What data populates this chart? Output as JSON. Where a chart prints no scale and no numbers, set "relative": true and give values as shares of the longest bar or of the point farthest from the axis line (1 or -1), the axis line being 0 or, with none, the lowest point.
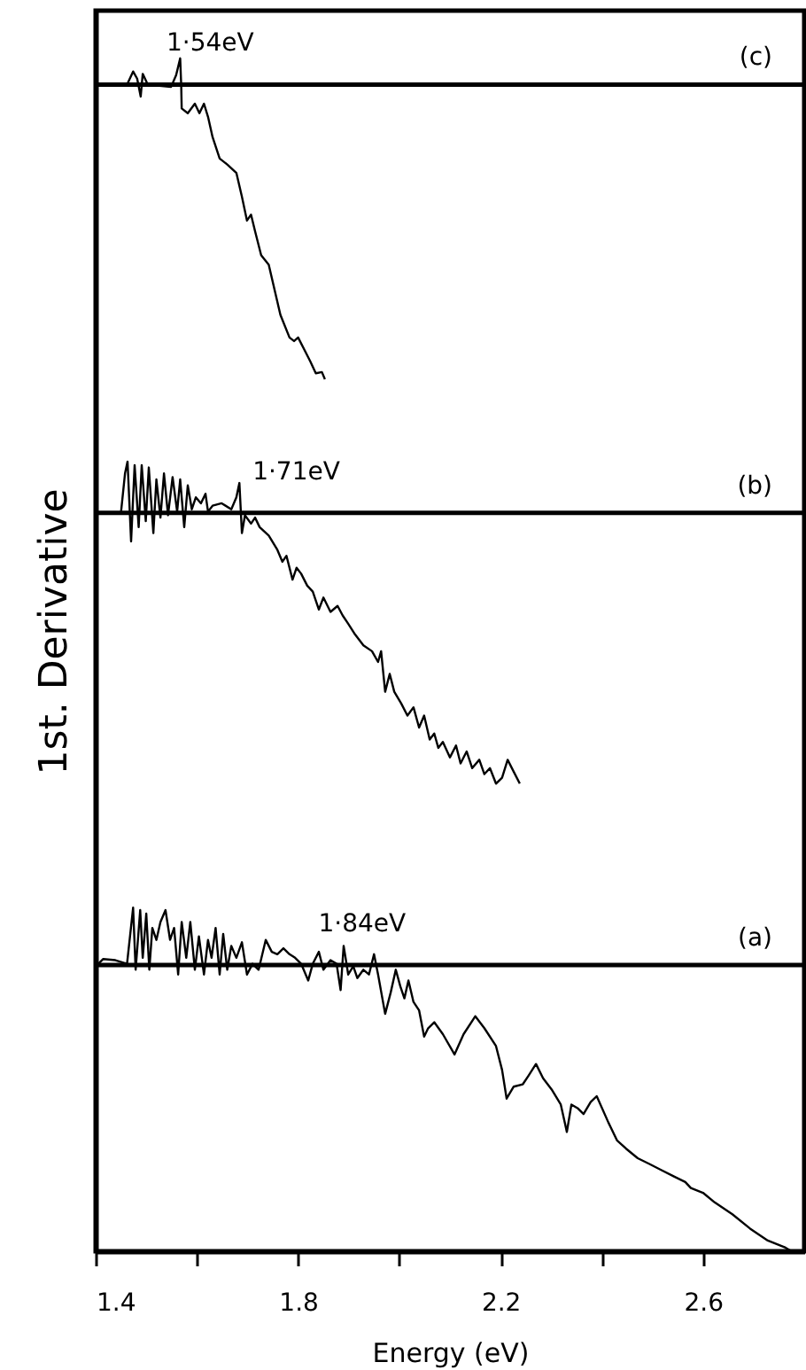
{
  "chart_data": {
    "type": "line",
    "xlabel": "Energy (eV)",
    "ylabel": "1st. Derivative",
    "relative": true,
    "grid": false,
    "line_style": "solid",
    "marker": "none",
    "xlim": [
      1.4,
      2.8
    ],
    "xticks": [
      1.4,
      {
        "value": 1.6,
        "label": null
      },
      1.8,
      {
        "value": 2.0,
        "label": null
      },
      2.2,
      {
        "value": 2.4,
        "label": null
      },
      2.6
    ],
    "series": [
      {
        "color": "#000000",
        "x": [
          1.4,
          1.462,
          1.474,
          1.482,
          1.489,
          1.493,
          1.503,
          1.549,
          1.559,
          1.567,
          1.569,
          1.57,
          1.582,
          1.596,
          1.605,
          1.614,
          1.622,
          1.631,
          1.645,
          1.66,
          1.678,
          1.689,
          1.699,
          1.707,
          1.715,
          1.727,
          1.742,
          1.754,
          1.765,
          1.783,
          1.792,
          1.8,
          1.812,
          1.824,
          1.835,
          1.847,
          1.853
        ],
        "values": [
          0.978,
          0.978,
          0.989,
          0.983,
          0.968,
          0.987,
          0.978,
          0.976,
          0.986,
          1.0,
          0.978,
          0.958,
          0.954,
          0.962,
          0.954,
          0.962,
          0.951,
          0.934,
          0.916,
          0.911,
          0.904,
          0.884,
          0.864,
          0.869,
          0.855,
          0.835,
          0.827,
          0.805,
          0.785,
          0.766,
          0.763,
          0.766,
          0.756,
          0.746,
          0.736,
          0.737,
          0.731
        ]
      },
      {
        "color": "#000000",
        "x": [
          1.4,
          1.45,
          1.458,
          1.463,
          1.47,
          1.477,
          1.485,
          1.491,
          1.499,
          1.505,
          1.514,
          1.52,
          1.528,
          1.535,
          1.543,
          1.552,
          1.561,
          1.567,
          1.575,
          1.582,
          1.59,
          1.598,
          1.608,
          1.617,
          1.622,
          1.631,
          1.649,
          1.668,
          1.678,
          1.684,
          1.689,
          1.695,
          1.707,
          1.715,
          1.724,
          1.742,
          1.759,
          1.769,
          1.777,
          1.789,
          1.797,
          1.806,
          1.818,
          1.829,
          1.841,
          1.85,
          1.864,
          1.878,
          1.888,
          1.899,
          1.911,
          1.929,
          1.946,
          1.958,
          1.964,
          1.972,
          1.981,
          1.99,
          2.004,
          2.016,
          2.028,
          2.039,
          2.049,
          2.06,
          2.069,
          2.077,
          2.086,
          2.1,
          2.112,
          2.121,
          2.133,
          2.144,
          2.158,
          2.168,
          2.179,
          2.191,
          2.203,
          2.214,
          2.226,
          2.238
        ],
        "values": [
          0.619,
          0.619,
          0.652,
          0.662,
          0.595,
          0.659,
          0.607,
          0.659,
          0.612,
          0.657,
          0.602,
          0.647,
          0.615,
          0.652,
          0.617,
          0.649,
          0.62,
          0.647,
          0.607,
          0.642,
          0.622,
          0.632,
          0.627,
          0.635,
          0.62,
          0.625,
          0.627,
          0.622,
          0.632,
          0.644,
          0.602,
          0.617,
          0.61,
          0.615,
          0.607,
          0.6,
          0.588,
          0.578,
          0.583,
          0.563,
          0.573,
          0.568,
          0.558,
          0.553,
          0.538,
          0.548,
          0.536,
          0.541,
          0.533,
          0.526,
          0.518,
          0.508,
          0.503,
          0.494,
          0.503,
          0.469,
          0.484,
          0.469,
          0.459,
          0.449,
          0.456,
          0.439,
          0.449,
          0.429,
          0.434,
          0.422,
          0.427,
          0.414,
          0.424,
          0.409,
          0.419,
          0.405,
          0.412,
          0.4,
          0.405,
          0.392,
          0.397,
          0.412,
          0.402,
          0.392
        ]
      },
      {
        "color": "#000000",
        "x": [
          1.403,
          1.415,
          1.439,
          1.462,
          1.474,
          1.479,
          1.488,
          1.493,
          1.5,
          1.506,
          1.512,
          1.52,
          1.528,
          1.538,
          1.547,
          1.555,
          1.563,
          1.57,
          1.579,
          1.587,
          1.596,
          1.604,
          1.614,
          1.622,
          1.629,
          1.637,
          1.645,
          1.652,
          1.66,
          1.668,
          1.678,
          1.689,
          1.699,
          1.71,
          1.722,
          1.736,
          1.748,
          1.759,
          1.771,
          1.783,
          1.794,
          1.806,
          1.82,
          1.829,
          1.841,
          1.85,
          1.864,
          1.876,
          1.884,
          1.89,
          1.899,
          1.909,
          1.917,
          1.929,
          1.94,
          1.95,
          1.958,
          1.972,
          1.983,
          1.993,
          2.002,
          2.01,
          2.018,
          2.028,
          2.039,
          2.049,
          2.057,
          2.069,
          2.086,
          2.109,
          2.127,
          2.15,
          2.168,
          2.191,
          2.203,
          2.212,
          2.226,
          2.244,
          2.255,
          2.27,
          2.284,
          2.302,
          2.319,
          2.331,
          2.34,
          2.352,
          2.364,
          2.378,
          2.39,
          2.413,
          2.43,
          2.448,
          2.471,
          2.495,
          2.518,
          2.541,
          2.565,
          2.576,
          2.6,
          2.623,
          2.658,
          2.693,
          2.728,
          2.763,
          2.775
        ],
        "values": [
          0.24,
          0.245,
          0.244,
          0.241,
          0.288,
          0.236,
          0.286,
          0.246,
          0.283,
          0.236,
          0.271,
          0.261,
          0.276,
          0.286,
          0.261,
          0.271,
          0.232,
          0.276,
          0.246,
          0.276,
          0.236,
          0.264,
          0.232,
          0.261,
          0.246,
          0.271,
          0.232,
          0.266,
          0.236,
          0.256,
          0.246,
          0.259,
          0.232,
          0.241,
          0.236,
          0.261,
          0.251,
          0.249,
          0.254,
          0.249,
          0.246,
          0.241,
          0.227,
          0.241,
          0.251,
          0.236,
          0.244,
          0.241,
          0.219,
          0.256,
          0.232,
          0.239,
          0.229,
          0.236,
          0.232,
          0.249,
          0.232,
          0.199,
          0.217,
          0.236,
          0.222,
          0.212,
          0.227,
          0.209,
          0.202,
          0.18,
          0.187,
          0.192,
          0.182,
          0.165,
          0.182,
          0.197,
          0.187,
          0.172,
          0.152,
          0.128,
          0.138,
          0.14,
          0.147,
          0.157,
          0.145,
          0.135,
          0.123,
          0.1,
          0.123,
          0.12,
          0.115,
          0.125,
          0.13,
          0.108,
          0.093,
          0.086,
          0.078,
          0.073,
          0.068,
          0.063,
          0.058,
          0.053,
          0.049,
          0.041,
          0.031,
          0.019,
          0.009,
          0.003,
          0
        ]
      }
    ],
    "ref_lines": [
      {
        "axis": "y",
        "value": 0.978,
        "label": "(c)"
      },
      {
        "axis": "y",
        "value": 0.619,
        "label": "(b)"
      },
      {
        "axis": "y",
        "value": 0.24,
        "label": "(a)"
      }
    ],
    "annotations": [
      {
        "text": "1·54eV",
        "x": 1.54,
        "y": 0.978
      },
      {
        "text": "1·71eV",
        "x": 1.71,
        "y": 0.619
      },
      {
        "text": "1·84eV",
        "x": 1.84,
        "y": 0.24
      }
    ]
  }
}
